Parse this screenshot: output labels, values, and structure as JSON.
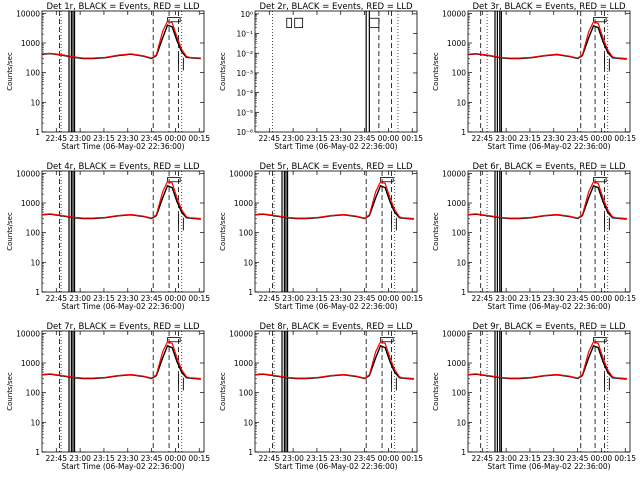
{
  "colors": {
    "background": "#ffffff",
    "axis": "#000000",
    "events_series": "#000000",
    "lld_series": "#ff0000"
  },
  "shared": {
    "xlabel": "Start Time (06-May-02 22:36:00)",
    "ylabel": "Counts/sec",
    "x_tick_labels": [
      "22:45",
      "23:00",
      "23:15",
      "23:30",
      "23:45",
      "00:00",
      "00:15"
    ],
    "x_tick_minutes": [
      9,
      24,
      39,
      54,
      69,
      84,
      99
    ],
    "xlim_minutes": [
      0,
      102
    ]
  },
  "chart_data": [
    {
      "type": "line",
      "title": "Det 1r, BLACK = Events, RED = LLD",
      "yscale": "log",
      "ylim": [
        1,
        12000
      ],
      "y_tick_labels": [
        "1",
        "10",
        "100",
        "1000",
        "10000"
      ],
      "y_tick_values": [
        1,
        10,
        100,
        1000,
        10000
      ],
      "x_minutes": [
        0,
        5,
        8,
        14,
        20,
        26,
        32,
        40,
        48,
        56,
        64,
        69,
        72,
        76,
        79,
        82,
        85,
        88,
        91,
        93,
        96,
        100
      ],
      "series": [
        {
          "name": "Events",
          "values": [
            420,
            440,
            420,
            380,
            330,
            300,
            300,
            320,
            380,
            420,
            360,
            300,
            380,
            1500,
            4000,
            3500,
            1200,
            500,
            330,
            320,
            310,
            300
          ]
        },
        {
          "name": "LLD",
          "values": [
            430,
            450,
            430,
            390,
            340,
            310,
            310,
            330,
            390,
            430,
            370,
            310,
            400,
            2500,
            5500,
            4800,
            1600,
            600,
            350,
            330,
            320,
            310
          ]
        }
      ],
      "solid_vlines": [
        17,
        18.5,
        19.5,
        20.5
      ],
      "dashed_vlines": [
        11,
        70,
        80,
        86
      ],
      "dotted_vlines": [
        12,
        88
      ],
      "error_bars": [
        {
          "x": 86,
          "low": 150,
          "high": 400
        },
        {
          "x": 89,
          "low": 120,
          "high": 320
        }
      ],
      "boxes": [
        {
          "x1": 79,
          "x2": 87,
          "y1": 5200,
          "y2": 7200
        }
      ]
    },
    {
      "type": "line",
      "title": "Det 2r, BLACK = Events, RED = LLD",
      "yscale": "log",
      "ylim": [
        1e-06,
        1.4
      ],
      "y_tick_labels": [
        "10⁰",
        "10⁻¹",
        "10⁻²",
        "10⁻³",
        "10⁻⁴",
        "10⁻⁵",
        "10⁻⁶"
      ],
      "y_tick_values": [
        1,
        0.1,
        0.01,
        0.001,
        0.0001,
        1e-05,
        1e-06
      ],
      "x_minutes": [],
      "series": [],
      "solid_vlines": [
        70,
        72
      ],
      "dashed_vlines": [
        78,
        86
      ],
      "dotted_vlines": [
        11,
        90
      ],
      "error_bars": [],
      "boxes": [
        {
          "x1": 20,
          "x2": 23,
          "y1": 0.2,
          "y2": 0.6
        },
        {
          "x1": 25,
          "x2": 30,
          "y1": 0.2,
          "y2": 0.6
        },
        {
          "x1": 72,
          "x2": 78,
          "y1": 0.2,
          "y2": 0.6
        }
      ]
    },
    {
      "type": "line",
      "title": "Det 3r, BLACK = Events, RED = LLD",
      "yscale": "log",
      "ylim": [
        1,
        12000
      ],
      "y_tick_labels": [
        "1",
        "10",
        "100",
        "1000",
        "10000"
      ],
      "y_tick_values": [
        1,
        10,
        100,
        1000,
        10000
      ],
      "x_minutes": [
        0,
        5,
        8,
        14,
        20,
        26,
        32,
        40,
        48,
        56,
        64,
        69,
        72,
        76,
        79,
        82,
        85,
        88,
        91,
        93,
        96,
        100
      ],
      "series": [
        {
          "name": "Events",
          "values": [
            410,
            430,
            410,
            370,
            320,
            300,
            300,
            320,
            370,
            410,
            350,
            300,
            380,
            1500,
            3800,
            3300,
            1100,
            480,
            320,
            310,
            300,
            290
          ]
        },
        {
          "name": "LLD",
          "values": [
            420,
            440,
            420,
            380,
            330,
            310,
            310,
            330,
            380,
            420,
            360,
            310,
            400,
            2400,
            5200,
            4600,
            1500,
            580,
            340,
            320,
            310,
            300
          ]
        }
      ],
      "solid_vlines": [
        17,
        18.5,
        20,
        21
      ],
      "dashed_vlines": [
        8,
        71,
        80,
        86
      ],
      "dotted_vlines": [
        12,
        88
      ],
      "error_bars": [
        {
          "x": 86,
          "low": 140,
          "high": 380
        },
        {
          "x": 89,
          "low": 110,
          "high": 300
        }
      ],
      "boxes": [
        {
          "x1": 79,
          "x2": 87,
          "y1": 5200,
          "y2": 7200
        }
      ]
    },
    {
      "type": "line",
      "title": "Det 4r, BLACK = Events, RED = LLD",
      "yscale": "log",
      "ylim": [
        1,
        12000
      ],
      "y_tick_labels": [
        "1",
        "10",
        "100",
        "1000",
        "10000"
      ],
      "y_tick_values": [
        1,
        10,
        100,
        1000,
        10000
      ],
      "x_minutes": [
        0,
        5,
        8,
        14,
        20,
        26,
        32,
        40,
        48,
        56,
        64,
        69,
        72,
        76,
        79,
        82,
        85,
        88,
        91,
        93,
        96,
        100
      ],
      "series": [
        {
          "name": "Events",
          "values": [
            400,
            420,
            400,
            360,
            320,
            300,
            300,
            320,
            370,
            400,
            350,
            300,
            380,
            1500,
            3800,
            3300,
            1100,
            480,
            320,
            310,
            300,
            290
          ]
        },
        {
          "name": "LLD",
          "values": [
            410,
            430,
            410,
            370,
            330,
            310,
            310,
            330,
            380,
            410,
            360,
            310,
            400,
            2400,
            5300,
            4700,
            1500,
            580,
            340,
            320,
            310,
            300
          ]
        }
      ],
      "solid_vlines": [
        17,
        18.5,
        19.5,
        20.5
      ],
      "dashed_vlines": [
        11,
        70,
        80,
        86
      ],
      "dotted_vlines": [
        12,
        88
      ],
      "error_bars": [
        {
          "x": 86,
          "low": 150,
          "high": 400
        },
        {
          "x": 89,
          "low": 120,
          "high": 320
        }
      ],
      "boxes": [
        {
          "x1": 79,
          "x2": 87,
          "y1": 5200,
          "y2": 7200
        }
      ]
    },
    {
      "type": "line",
      "title": "Det 5r, BLACK = Events, RED = LLD",
      "yscale": "log",
      "ylim": [
        1,
        12000
      ],
      "y_tick_labels": [
        "1",
        "10",
        "100",
        "1000",
        "10000"
      ],
      "y_tick_values": [
        1,
        10,
        100,
        1000,
        10000
      ],
      "x_minutes": [
        0,
        5,
        8,
        14,
        20,
        26,
        32,
        40,
        48,
        56,
        64,
        69,
        72,
        76,
        79,
        82,
        85,
        88,
        91,
        93,
        96,
        100
      ],
      "series": [
        {
          "name": "Events",
          "values": [
            400,
            420,
            400,
            360,
            320,
            300,
            300,
            320,
            370,
            400,
            350,
            300,
            380,
            1500,
            3800,
            3300,
            1100,
            480,
            320,
            310,
            300,
            290
          ]
        },
        {
          "name": "LLD",
          "values": [
            410,
            430,
            410,
            370,
            330,
            310,
            310,
            330,
            380,
            410,
            360,
            310,
            400,
            2400,
            5200,
            4600,
            1500,
            580,
            340,
            320,
            310,
            300
          ]
        }
      ],
      "solid_vlines": [
        17,
        18.5,
        19.5,
        20.5
      ],
      "dashed_vlines": [
        11,
        70,
        80,
        86
      ],
      "dotted_vlines": [
        12,
        88
      ],
      "error_bars": [
        {
          "x": 86,
          "low": 150,
          "high": 400
        },
        {
          "x": 89,
          "low": 120,
          "high": 320
        }
      ],
      "boxes": [
        {
          "x1": 79,
          "x2": 87,
          "y1": 5200,
          "y2": 7200
        }
      ]
    },
    {
      "type": "line",
      "title": "Det 6r, BLACK = Events, RED = LLD",
      "yscale": "log",
      "ylim": [
        1,
        12000
      ],
      "y_tick_labels": [
        "1",
        "10",
        "100",
        "1000",
        "10000"
      ],
      "y_tick_values": [
        1,
        10,
        100,
        1000,
        10000
      ],
      "x_minutes": [
        0,
        5,
        8,
        14,
        20,
        26,
        32,
        40,
        48,
        56,
        64,
        69,
        72,
        76,
        79,
        82,
        85,
        88,
        91,
        93,
        96,
        100
      ],
      "series": [
        {
          "name": "Events",
          "values": [
            400,
            420,
            400,
            360,
            320,
            300,
            300,
            320,
            370,
            400,
            350,
            300,
            380,
            1500,
            3800,
            3300,
            1100,
            480,
            320,
            310,
            300,
            290
          ]
        },
        {
          "name": "LLD",
          "values": [
            410,
            430,
            410,
            370,
            330,
            310,
            310,
            330,
            380,
            410,
            360,
            310,
            400,
            2400,
            5200,
            4600,
            1500,
            580,
            340,
            320,
            310,
            300
          ]
        }
      ],
      "solid_vlines": [
        17,
        18.5,
        20,
        21
      ],
      "dashed_vlines": [
        8,
        71,
        80,
        86
      ],
      "dotted_vlines": [
        12,
        88
      ],
      "error_bars": [
        {
          "x": 86,
          "low": 150,
          "high": 400
        },
        {
          "x": 89,
          "low": 120,
          "high": 320
        }
      ],
      "boxes": [
        {
          "x1": 79,
          "x2": 87,
          "y1": 5200,
          "y2": 7200
        }
      ]
    },
    {
      "type": "line",
      "title": "Det 7r, BLACK = Events, RED = LLD",
      "yscale": "log",
      "ylim": [
        1,
        12000
      ],
      "y_tick_labels": [
        "1",
        "10",
        "100",
        "1000",
        "10000"
      ],
      "y_tick_values": [
        1,
        10,
        100,
        1000,
        10000
      ],
      "x_minutes": [
        0,
        5,
        8,
        14,
        20,
        26,
        32,
        40,
        48,
        56,
        64,
        69,
        72,
        76,
        79,
        82,
        85,
        88,
        91,
        93,
        96,
        100
      ],
      "series": [
        {
          "name": "Events",
          "values": [
            400,
            420,
            400,
            360,
            320,
            300,
            300,
            320,
            370,
            400,
            350,
            300,
            380,
            1500,
            3800,
            3300,
            1100,
            480,
            320,
            310,
            300,
            290
          ]
        },
        {
          "name": "LLD",
          "values": [
            410,
            430,
            410,
            370,
            330,
            310,
            310,
            330,
            380,
            410,
            360,
            310,
            400,
            2400,
            5200,
            4600,
            1500,
            580,
            340,
            320,
            310,
            300
          ]
        }
      ],
      "solid_vlines": [
        17,
        18.5,
        19.5,
        20.5
      ],
      "dashed_vlines": [
        11,
        70,
        80,
        86
      ],
      "dotted_vlines": [
        12,
        88
      ],
      "error_bars": [
        {
          "x": 86,
          "low": 150,
          "high": 400
        },
        {
          "x": 89,
          "low": 120,
          "high": 320
        }
      ],
      "boxes": [
        {
          "x1": 79,
          "x2": 87,
          "y1": 5200,
          "y2": 7200
        }
      ]
    },
    {
      "type": "line",
      "title": "Det 8r, BLACK = Events, RED = LLD",
      "yscale": "log",
      "ylim": [
        1,
        12000
      ],
      "y_tick_labels": [
        "1",
        "10",
        "100",
        "1000",
        "10000"
      ],
      "y_tick_values": [
        1,
        10,
        100,
        1000,
        10000
      ],
      "x_minutes": [
        0,
        5,
        8,
        14,
        20,
        26,
        32,
        40,
        48,
        56,
        64,
        69,
        72,
        76,
        79,
        82,
        85,
        88,
        91,
        93,
        96,
        100
      ],
      "series": [
        {
          "name": "Events",
          "values": [
            400,
            420,
            400,
            360,
            320,
            300,
            300,
            320,
            370,
            400,
            350,
            300,
            380,
            1500,
            3800,
            3300,
            1100,
            480,
            320,
            310,
            300,
            290
          ]
        },
        {
          "name": "LLD",
          "values": [
            410,
            430,
            410,
            370,
            330,
            310,
            310,
            330,
            380,
            410,
            360,
            310,
            400,
            2400,
            5200,
            4600,
            1500,
            580,
            340,
            320,
            310,
            300
          ]
        }
      ],
      "solid_vlines": [
        17,
        18.5,
        19.5,
        20.5
      ],
      "dashed_vlines": [
        11,
        70,
        80,
        86
      ],
      "dotted_vlines": [
        12,
        88
      ],
      "error_bars": [
        {
          "x": 86,
          "low": 150,
          "high": 400
        },
        {
          "x": 89,
          "low": 120,
          "high": 320
        }
      ],
      "boxes": [
        {
          "x1": 79,
          "x2": 87,
          "y1": 5200,
          "y2": 7200
        }
      ]
    },
    {
      "type": "line",
      "title": "Det 9r, BLACK = Events, RED = LLD",
      "yscale": "log",
      "ylim": [
        1,
        12000
      ],
      "y_tick_labels": [
        "1",
        "10",
        "100",
        "1000",
        "10000"
      ],
      "y_tick_values": [
        1,
        10,
        100,
        1000,
        10000
      ],
      "x_minutes": [
        0,
        5,
        8,
        14,
        20,
        26,
        32,
        40,
        48,
        56,
        64,
        69,
        72,
        76,
        79,
        82,
        85,
        88,
        91,
        93,
        96,
        100
      ],
      "series": [
        {
          "name": "Events",
          "values": [
            400,
            420,
            400,
            360,
            320,
            300,
            300,
            320,
            370,
            400,
            350,
            300,
            380,
            1500,
            3800,
            3300,
            1100,
            480,
            320,
            310,
            300,
            290
          ]
        },
        {
          "name": "LLD",
          "values": [
            410,
            430,
            410,
            370,
            330,
            310,
            310,
            330,
            380,
            410,
            360,
            310,
            400,
            2400,
            5200,
            4600,
            1500,
            580,
            340,
            320,
            310,
            300
          ]
        }
      ],
      "solid_vlines": [
        17,
        18.5,
        20,
        21
      ],
      "dashed_vlines": [
        8,
        71,
        80,
        86
      ],
      "dotted_vlines": [
        12,
        88
      ],
      "error_bars": [
        {
          "x": 86,
          "low": 150,
          "high": 400
        },
        {
          "x": 89,
          "low": 120,
          "high": 320
        }
      ],
      "boxes": [
        {
          "x1": 79,
          "x2": 87,
          "y1": 5200,
          "y2": 7200
        }
      ]
    }
  ]
}
